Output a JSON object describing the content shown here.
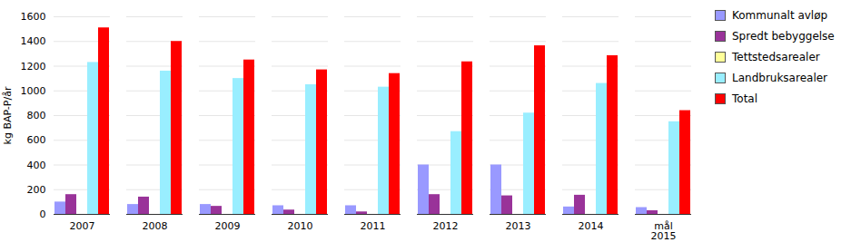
{
  "chart_data": {
    "type": "bar",
    "categories": [
      "2007",
      "2008",
      "2009",
      "2010",
      "2011",
      "2012",
      "2013",
      "2014",
      "mål\n2015"
    ],
    "series": [
      {
        "name": "Kommunalt avløp",
        "color": "#9999ff",
        "values": [
          100,
          80,
          80,
          70,
          70,
          400,
          400,
          60,
          55
        ]
      },
      {
        "name": "Spredt bebyggelse",
        "color": "#993399",
        "values": [
          160,
          140,
          65,
          35,
          20,
          160,
          150,
          155,
          30
        ]
      },
      {
        "name": "Tettstedsarealer",
        "color": "#ffff99",
        "values": [
          0,
          0,
          0,
          0,
          0,
          0,
          0,
          0,
          0
        ]
      },
      {
        "name": "Landbruksarealer",
        "color": "#99eeff",
        "values": [
          1230,
          1160,
          1100,
          1050,
          1030,
          670,
          820,
          1060,
          750
        ]
      },
      {
        "name": "Total",
        "color": "#ff0000",
        "values": [
          1510,
          1400,
          1250,
          1170,
          1140,
          1235,
          1365,
          1285,
          840
        ]
      }
    ],
    "ylabel": "kg BAP-P/år",
    "ylim": [
      0,
      1600
    ],
    "yticks": [
      0,
      200,
      400,
      600,
      800,
      1000,
      1200,
      1400,
      1600
    ],
    "grid": true,
    "legend": "right"
  }
}
